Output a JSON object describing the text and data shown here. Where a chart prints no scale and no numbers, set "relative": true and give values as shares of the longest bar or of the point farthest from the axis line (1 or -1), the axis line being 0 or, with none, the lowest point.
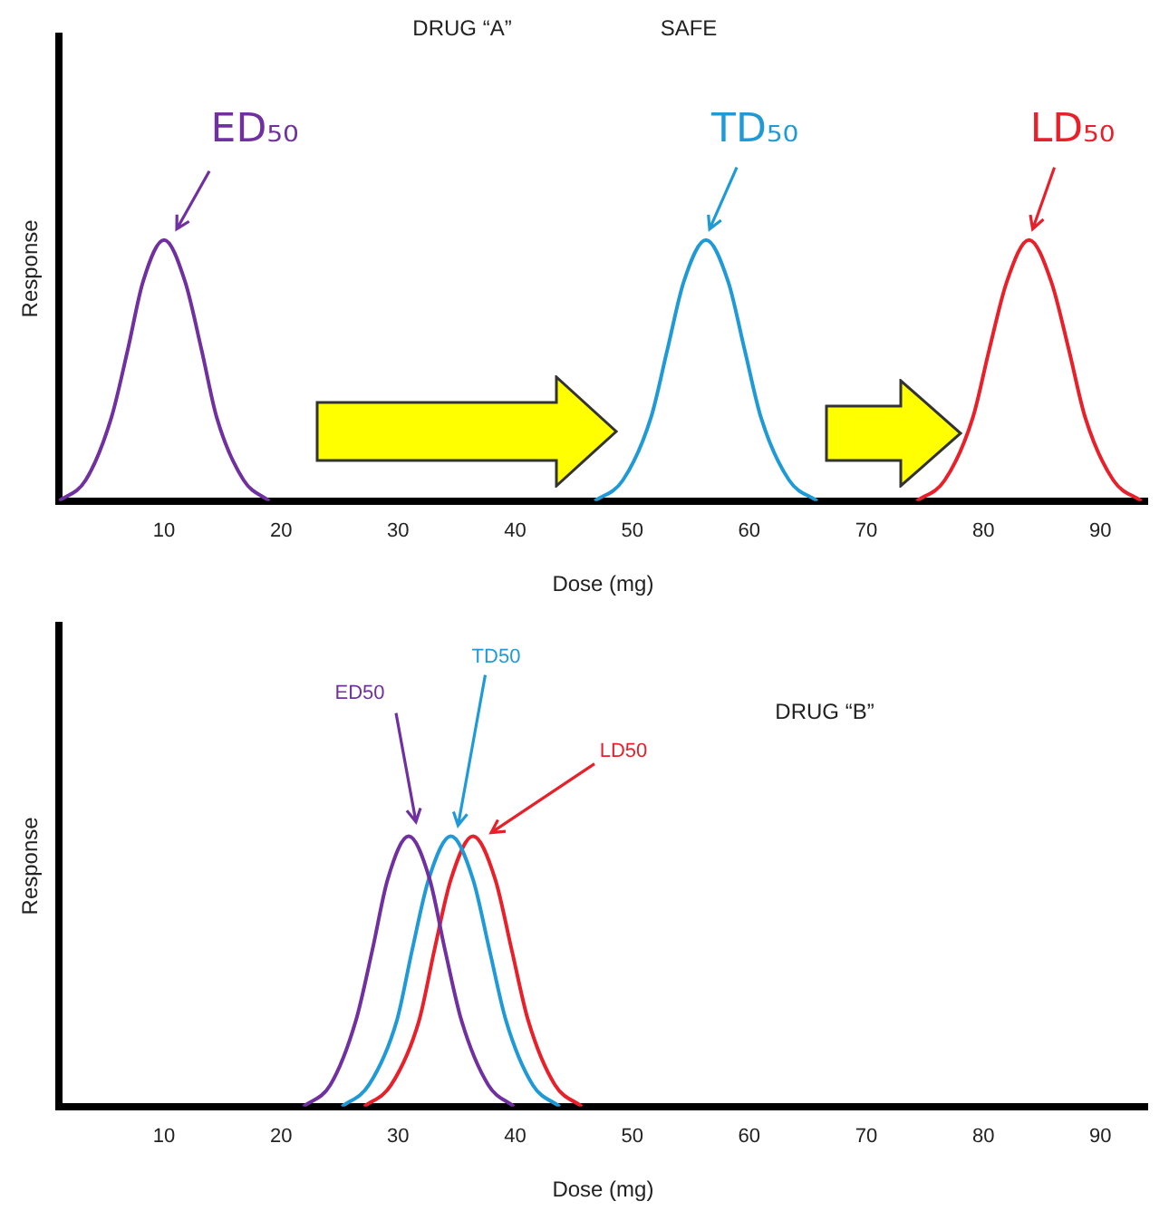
{
  "chart_data": [
    {
      "type": "line",
      "title": "DRUG “A”",
      "annotations": [
        "SAFE"
      ],
      "xlabel": "Dose (mg)",
      "ylabel": "Response",
      "relative": true,
      "tick_labels": "x",
      "grid": false,
      "legend": false,
      "marker": "none",
      "xlim": [
        1,
        94
      ],
      "xticks": [
        10,
        20,
        30,
        40,
        50,
        60,
        70,
        80,
        90
      ],
      "series": [
        {
          "name": "ED₅₀",
          "color": "#7030a0",
          "x": [
            1,
            3.3,
            5.5,
            6.9,
            8.2,
            10,
            11.8,
            13.2,
            14.5,
            16.8,
            19
          ],
          "values": [
            0,
            0.08,
            0.32,
            0.58,
            0.84,
            1,
            0.84,
            0.58,
            0.32,
            0.08,
            0
          ]
        },
        {
          "name": "TD₅₀",
          "color": "#1f9ad6",
          "x": [
            46.8,
            49.2,
            51.6,
            53,
            54.4,
            56.3,
            58.2,
            59.6,
            61,
            63.4,
            65.8
          ],
          "values": [
            0,
            0.08,
            0.32,
            0.58,
            0.84,
            1,
            0.84,
            0.58,
            0.32,
            0.08,
            0
          ]
        },
        {
          "name": "LD₅₀",
          "color": "#e8202a",
          "x": [
            74.3,
            76.7,
            79.1,
            80.5,
            82,
            83.9,
            85.8,
            87.3,
            88.7,
            91.1,
            93.5
          ],
          "values": [
            0,
            0.08,
            0.32,
            0.58,
            0.84,
            1,
            0.84,
            0.58,
            0.32,
            0.08,
            0
          ]
        }
      ]
    },
    {
      "type": "line",
      "title": "DRUG “B”",
      "xlabel": "Dose (mg)",
      "ylabel": "Response",
      "relative": true,
      "tick_labels": "x",
      "grid": false,
      "legend": false,
      "marker": "none",
      "xlim": [
        1,
        94
      ],
      "xticks": [
        10,
        20,
        30,
        40,
        50,
        60,
        70,
        80,
        90
      ],
      "series": [
        {
          "name": "ED50",
          "color": "#7030a0",
          "x": [
            21.9,
            24.2,
            26.4,
            27.8,
            29.1,
            30.9,
            32.7,
            34,
            35.4,
            37.7,
            39.9
          ],
          "values": [
            0,
            0.08,
            0.32,
            0.58,
            0.84,
            1,
            0.84,
            0.58,
            0.32,
            0.08,
            0
          ]
        },
        {
          "name": "TD50",
          "color": "#1f9ad6",
          "x": [
            25.2,
            27.5,
            29.9,
            31.2,
            32.6,
            34.5,
            36.4,
            37.8,
            39.2,
            41.5,
            43.8
          ],
          "values": [
            0,
            0.08,
            0.32,
            0.58,
            0.84,
            1,
            0.84,
            0.58,
            0.32,
            0.08,
            0
          ]
        },
        {
          "name": "LD50",
          "color": "#e8202a",
          "x": [
            27.1,
            29.4,
            31.8,
            33.1,
            34.5,
            36.4,
            38.3,
            39.7,
            41.1,
            43.4,
            45.7
          ],
          "values": [
            0,
            0.08,
            0.32,
            0.58,
            0.84,
            1,
            0.84,
            0.58,
            0.32,
            0.08,
            0
          ]
        }
      ]
    }
  ]
}
